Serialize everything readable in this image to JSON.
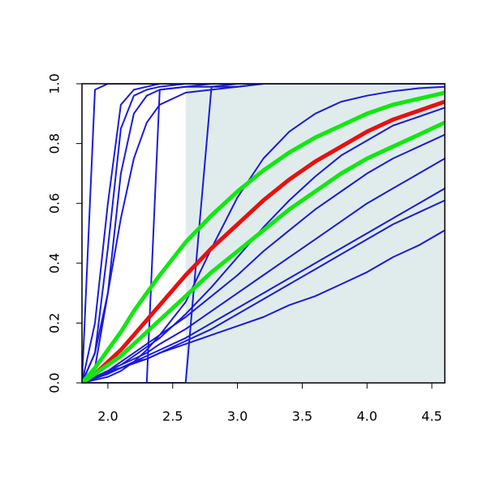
{
  "chart_data": {
    "type": "line",
    "x": [
      1.8,
      1.9,
      2.0,
      2.1,
      2.2,
      2.3,
      2.4,
      2.6,
      2.8,
      3.0,
      3.2,
      3.4,
      3.6,
      3.8,
      4.0,
      4.2,
      4.4,
      4.6
    ],
    "xlim": [
      1.8,
      4.6
    ],
    "ylim": [
      0,
      1
    ],
    "xticks": [
      {
        "value": 2.0,
        "label": "2.0"
      },
      {
        "value": 2.5,
        "label": "2.5"
      },
      {
        "value": 3.0,
        "label": "3.0"
      },
      {
        "value": 3.5,
        "label": "3.5"
      },
      {
        "value": 4.0,
        "label": "4.0"
      },
      {
        "value": 4.5,
        "label": "4.5"
      }
    ],
    "yticks": [
      {
        "value": 0,
        "label": "0.0"
      },
      {
        "value": 0.2,
        "label": "0.2"
      },
      {
        "value": 0.4,
        "label": "0.4"
      },
      {
        "value": 0.6,
        "label": "0.6"
      },
      {
        "value": 0.8,
        "label": "0.8"
      },
      {
        "value": 1.0,
        "label": "1.0"
      }
    ],
    "shade": {
      "x": [
        2.6,
        4.6
      ],
      "color": "#e0ecec"
    },
    "series": [
      {
        "color": "#1a1adc",
        "width": 2,
        "values": [
          0,
          0.98,
          1,
          1,
          1,
          1,
          1,
          1,
          1,
          1,
          1,
          1,
          1,
          1,
          1,
          1,
          1,
          1
        ]
      },
      {
        "color": "#1a1adc",
        "width": 2,
        "values": [
          0,
          0.2,
          0.6,
          0.93,
          0.98,
          0.99,
          1,
          1,
          1,
          1,
          1,
          1,
          1,
          1,
          1,
          1,
          1,
          1
        ]
      },
      {
        "color": "#1a1adc",
        "width": 2,
        "values": [
          0,
          0.1,
          0.45,
          0.85,
          0.96,
          0.98,
          0.99,
          1,
          1,
          1,
          1,
          1,
          1,
          1,
          1,
          1,
          1,
          1
        ]
      },
      {
        "color": "#1a1adc",
        "width": 2,
        "values": [
          0,
          0.05,
          0.3,
          0.7,
          0.9,
          0.96,
          0.98,
          0.99,
          1,
          1,
          1,
          1,
          1,
          1,
          1,
          1,
          1,
          1
        ]
      },
      {
        "color": "#1a1adc",
        "width": 2,
        "values": [
          0,
          0.1,
          0.3,
          0.55,
          0.75,
          0.87,
          0.93,
          0.97,
          0.98,
          0.99,
          1,
          1,
          1,
          1,
          1,
          1,
          1,
          1
        ]
      },
      {
        "color": "#1a1adc",
        "width": 2,
        "values": [
          0,
          0,
          0,
          0,
          0,
          0,
          0.98,
          0.99,
          0.99,
          1,
          1,
          1,
          1,
          1,
          1,
          1,
          1,
          1
        ]
      },
      {
        "color": "#1a1adc",
        "width": 2,
        "values": [
          0,
          0,
          0,
          0,
          0,
          0,
          0,
          0,
          0.99,
          0.99,
          1,
          1,
          1,
          1,
          1,
          1,
          1,
          1
        ]
      },
      {
        "color": "#1a1adc",
        "width": 2,
        "values": [
          0,
          0.01,
          0.02,
          0.04,
          0.07,
          0.11,
          0.16,
          0.27,
          0.45,
          0.62,
          0.75,
          0.84,
          0.9,
          0.94,
          0.96,
          0.975,
          0.985,
          0.99
        ]
      },
      {
        "color": "#1a1adc",
        "width": 2,
        "values": [
          0,
          0.02,
          0.04,
          0.06,
          0.09,
          0.12,
          0.15,
          0.23,
          0.32,
          0.42,
          0.52,
          0.61,
          0.69,
          0.76,
          0.81,
          0.86,
          0.89,
          0.92
        ]
      },
      {
        "color": "#1a1adc",
        "width": 2,
        "values": [
          0,
          0.02,
          0.04,
          0.07,
          0.1,
          0.13,
          0.16,
          0.22,
          0.29,
          0.36,
          0.44,
          0.51,
          0.58,
          0.64,
          0.7,
          0.75,
          0.79,
          0.83
        ]
      },
      {
        "color": "#1a1adc",
        "width": 2,
        "values": [
          0,
          0.02,
          0.04,
          0.06,
          0.08,
          0.1,
          0.13,
          0.18,
          0.24,
          0.3,
          0.36,
          0.42,
          0.48,
          0.54,
          0.6,
          0.65,
          0.7,
          0.75
        ]
      },
      {
        "color": "#1a1adc",
        "width": 2,
        "values": [
          0,
          0.015,
          0.03,
          0.05,
          0.07,
          0.09,
          0.11,
          0.15,
          0.2,
          0.25,
          0.3,
          0.35,
          0.4,
          0.45,
          0.5,
          0.55,
          0.6,
          0.65
        ]
      },
      {
        "color": "#1a1adc",
        "width": 2,
        "values": [
          0,
          0.02,
          0.035,
          0.05,
          0.065,
          0.08,
          0.1,
          0.14,
          0.18,
          0.23,
          0.28,
          0.33,
          0.38,
          0.43,
          0.48,
          0.53,
          0.57,
          0.61
        ]
      },
      {
        "color": "#1a1adc",
        "width": 2,
        "values": [
          0,
          0.02,
          0.04,
          0.05,
          0.07,
          0.08,
          0.1,
          0.13,
          0.16,
          0.19,
          0.22,
          0.26,
          0.29,
          0.33,
          0.37,
          0.42,
          0.46,
          0.51
        ]
      },
      {
        "color": "#e81010",
        "width": 5,
        "values": [
          0,
          0.03,
          0.07,
          0.11,
          0.16,
          0.21,
          0.26,
          0.36,
          0.45,
          0.53,
          0.61,
          0.68,
          0.74,
          0.79,
          0.84,
          0.88,
          0.91,
          0.94
        ]
      },
      {
        "color": "#10e810",
        "width": 5,
        "values": [
          0,
          0.05,
          0.11,
          0.17,
          0.24,
          0.3,
          0.36,
          0.47,
          0.56,
          0.64,
          0.71,
          0.77,
          0.82,
          0.86,
          0.9,
          0.93,
          0.95,
          0.97
        ]
      },
      {
        "color": "#10e810",
        "width": 5,
        "values": [
          0,
          0.03,
          0.06,
          0.09,
          0.13,
          0.17,
          0.21,
          0.29,
          0.37,
          0.44,
          0.51,
          0.58,
          0.64,
          0.7,
          0.75,
          0.79,
          0.83,
          0.87
        ]
      }
    ]
  }
}
